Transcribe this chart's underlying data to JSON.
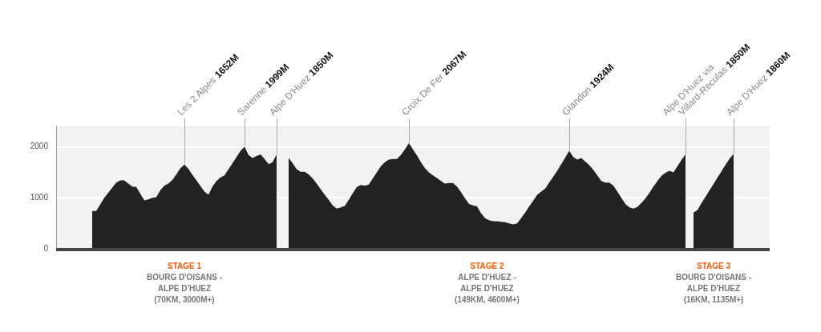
{
  "chart_data": {
    "type": "area",
    "categories": [
      null,
      null,
      null,
      null,
      null,
      null,
      null,
      null,
      null,
      null,
      null,
      null,
      null,
      null,
      null,
      null,
      null,
      null,
      null,
      null,
      null,
      null,
      null,
      null,
      null,
      null,
      null,
      null,
      null,
      null,
      null,
      null,
      null,
      null,
      null,
      null,
      null,
      null,
      null,
      null,
      null,
      null,
      null,
      null,
      null,
      null,
      null,
      null,
      null,
      null,
      null,
      null,
      null,
      null,
      null,
      null,
      null,
      null,
      null,
      null,
      null,
      null,
      null,
      null,
      null,
      null,
      null,
      null,
      null,
      null,
      null,
      null,
      null,
      null,
      null,
      null,
      null,
      null,
      null,
      null,
      null,
      null,
      null,
      null,
      null,
      null,
      null,
      null,
      null,
      null,
      null,
      null,
      null,
      null,
      null,
      null,
      null,
      null,
      null,
      null,
      null,
      null,
      null,
      null,
      null,
      null,
      null,
      null,
      null,
      null,
      null,
      null,
      null,
      null,
      null,
      null,
      null,
      null,
      null,
      null,
      null,
      null,
      null,
      null,
      null,
      null,
      null,
      null,
      null,
      null,
      null,
      null,
      null,
      null,
      null,
      null,
      null,
      null,
      null,
      null,
      null,
      null,
      null,
      null,
      null,
      null,
      null,
      null,
      null,
      null,
      null,
      null,
      null,
      null,
      null,
      null,
      null,
      null,
      null,
      null,
      null,
      null,
      null,
      null,
      null,
      null,
      null,
      null,
      null,
      null,
      null,
      null,
      null,
      null,
      null,
      null,
      null,
      null,
      null
    ],
    "series": [
      {
        "color": "#222222",
        "values": [
          null,
          null,
          null,
          null,
          null,
          null,
          null,
          null,
          null,
          740,
          740,
          870,
          1000,
          1100,
          1200,
          1300,
          1340,
          1340,
          1280,
          1220,
          1210,
          1080,
          950,
          970,
          1000,
          1010,
          1150,
          1240,
          1280,
          1350,
          1460,
          1580,
          1650,
          1570,
          1450,
          1340,
          1230,
          1120,
          1060,
          1220,
          1330,
          1400,
          1440,
          1560,
          1680,
          1800,
          1920,
          2000,
          1840,
          1780,
          1820,
          1850,
          1760,
          1660,
          1700,
          1850,
          null,
          null,
          null,
          null,
          null,
          null,
          null,
          null,
          null,
          null,
          null,
          null,
          null,
          null,
          null,
          null,
          null,
          null,
          null,
          null,
          null,
          null,
          null,
          null,
          null,
          null,
          null,
          null,
          null,
          null,
          null,
          null,
          null,
          null,
          null,
          null,
          null,
          null,
          null,
          null,
          null,
          null,
          null,
          null,
          null,
          null,
          null,
          null,
          null,
          null,
          null,
          null,
          null,
          null,
          null,
          null,
          null,
          null,
          null,
          null,
          null,
          null,
          null,
          null,
          null,
          null,
          null,
          null,
          null,
          null,
          null,
          null,
          null,
          null,
          null,
          null,
          null,
          null,
          null,
          null,
          null,
          null,
          null,
          null,
          null,
          null,
          null,
          null,
          null,
          null,
          null,
          null,
          null,
          null,
          null,
          null,
          null,
          null,
          null,
          null,
          null,
          null,
          null,
          null,
          null,
          null,
          null,
          null,
          null,
          null,
          null,
          null,
          null,
          null,
          null,
          null,
          null,
          null,
          null,
          null,
          null,
          null,
          null
        ]
      },
      {
        "color": "#222222",
        "values": [
          null,
          null,
          null,
          null,
          null,
          null,
          null,
          null,
          null,
          null,
          null,
          null,
          null,
          null,
          null,
          null,
          null,
          null,
          null,
          null,
          null,
          null,
          null,
          null,
          null,
          null,
          null,
          null,
          null,
          null,
          null,
          null,
          null,
          null,
          null,
          null,
          null,
          null,
          null,
          null,
          null,
          null,
          null,
          null,
          null,
          null,
          null,
          null,
          null,
          null,
          null,
          null,
          null,
          null,
          null,
          null,
          null,
          null,
          1780,
          1680,
          1560,
          1510,
          1510,
          1460,
          1380,
          1280,
          1170,
          1060,
          960,
          850,
          790,
          810,
          840,
          960,
          1090,
          1210,
          1250,
          1240,
          1260,
          1380,
          1500,
          1620,
          1700,
          1750,
          1760,
          1760,
          1840,
          1950,
          2070,
          1950,
          1830,
          1700,
          1580,
          1500,
          1440,
          1390,
          1330,
          1280,
          1290,
          1290,
          1220,
          1110,
          990,
          880,
          850,
          830,
          700,
          600,
          560,
          540,
          540,
          530,
          520,
          500,
          480,
          500,
          600,
          710,
          830,
          940,
          1060,
          1120,
          1180,
          1300,
          1410,
          1530,
          1660,
          1790,
          1920,
          1800,
          1750,
          1780,
          1710,
          1640,
          1550,
          1440,
          1330,
          1300,
          1300,
          1240,
          1120,
          1000,
          880,
          810,
          790,
          820,
          900,
          990,
          1100,
          1220,
          1330,
          1430,
          1490,
          1530,
          1500,
          1620,
          1740,
          1850,
          null,
          null,
          null,
          null,
          null,
          null,
          null,
          null,
          null,
          null,
          null,
          null,
          null,
          null,
          null,
          null,
          null,
          null,
          null,
          null,
          null
        ]
      },
      {
        "color": "#222222",
        "values": [
          null,
          null,
          null,
          null,
          null,
          null,
          null,
          null,
          null,
          null,
          null,
          null,
          null,
          null,
          null,
          null,
          null,
          null,
          null,
          null,
          null,
          null,
          null,
          null,
          null,
          null,
          null,
          null,
          null,
          null,
          null,
          null,
          null,
          null,
          null,
          null,
          null,
          null,
          null,
          null,
          null,
          null,
          null,
          null,
          null,
          null,
          null,
          null,
          null,
          null,
          null,
          null,
          null,
          null,
          null,
          null,
          null,
          null,
          null,
          null,
          null,
          null,
          null,
          null,
          null,
          null,
          null,
          null,
          null,
          null,
          null,
          null,
          null,
          null,
          null,
          null,
          null,
          null,
          null,
          null,
          null,
          null,
          null,
          null,
          null,
          null,
          null,
          null,
          null,
          null,
          null,
          null,
          null,
          null,
          null,
          null,
          null,
          null,
          null,
          null,
          null,
          null,
          null,
          null,
          null,
          null,
          null,
          null,
          null,
          null,
          null,
          null,
          null,
          null,
          null,
          null,
          null,
          null,
          null,
          null,
          null,
          null,
          null,
          null,
          null,
          null,
          null,
          null,
          null,
          null,
          null,
          null,
          null,
          null,
          null,
          null,
          null,
          null,
          null,
          null,
          null,
          null,
          null,
          null,
          null,
          null,
          null,
          null,
          null,
          null,
          null,
          null,
          null,
          null,
          null,
          null,
          null,
          null,
          null,
          710,
          760,
          900,
          1020,
          1150,
          1270,
          1400,
          1520,
          1650,
          1770,
          1860,
          null,
          null,
          null,
          null,
          null,
          null,
          null,
          null,
          null
        ]
      }
    ],
    "ylim": [
      0,
      2400
    ],
    "yticks": [
      0,
      1000,
      2000
    ],
    "grid": "y",
    "legend": false,
    "annotations": [
      "Les 2 Alpes 1652M",
      "Sarenne 1999M",
      "Alpe D'Huez 1850M",
      "Croix De Fer 2067M",
      "Glandon 1924M",
      "Alpe D'Huez via\nVillard-Reculas 1850M",
      "Alpe D'Huez 1860M",
      "STAGE 1\nBOURG D'OISANS -\nALPE D'HUEZ\n(70KM, 3000M+)",
      "STAGE 2\nALPE D'HUEZ -\nALPE D'HUEZ\n(149KM, 4600M+)",
      "STAGE 3\nBOURG D'OISANS -\nALPE D'HUEZ\n(16KM, 1135M+)"
    ]
  }
}
